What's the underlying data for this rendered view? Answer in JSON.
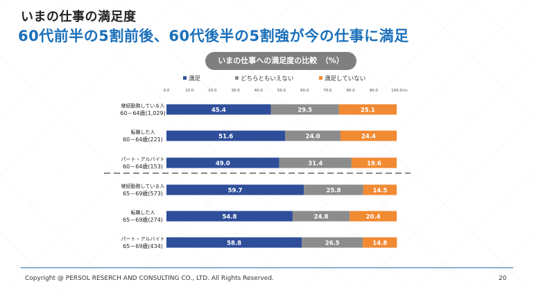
{
  "slide": {
    "title": "いまの仕事の満足度",
    "subtitle": "60代前半の5割前後、60代後半の5割強が今の仕事に満足",
    "pill_label": "いまの仕事への満足度の比較　（%）",
    "copyright": "Copyright @ PERSOL RESERCH AND CONSULTING CO., LTD. All Rights Reserved.",
    "page_number": "20"
  },
  "chart_data": {
    "type": "bar",
    "orientation": "horizontal",
    "stacked": true,
    "unit": "(%)",
    "xlim": [
      0,
      100
    ],
    "ticks": [
      "0.0",
      "10.0",
      "20.0",
      "30.0",
      "40.0",
      "50.0",
      "60.0",
      "70.0",
      "80.0",
      "90.0",
      "100.0"
    ],
    "legend_position": "top",
    "categories": [
      [
        "継続勤務している人",
        "60－64歳(1,029)"
      ],
      [
        "転職した人",
        "60－64歳(221)"
      ],
      [
        "パート・アルバイト",
        "60－64歳(153)"
      ],
      [
        "継続勤務している人",
        "65－69歳(573)"
      ],
      [
        "転職した人",
        "65－69歳(274)"
      ],
      [
        "パート・アルバイト",
        "65－69歳(434)"
      ]
    ],
    "series": [
      {
        "name": "満足",
        "color": "#2f4e9a",
        "values": [
          45.4,
          51.6,
          49.0,
          59.7,
          54.8,
          58.8
        ]
      },
      {
        "name": "どちらともいえない",
        "color": "#8c8c8c",
        "values": [
          29.5,
          24.0,
          31.4,
          25.8,
          24.8,
          26.5
        ]
      },
      {
        "name": "満足していない",
        "color": "#f08a33",
        "values": [
          25.1,
          24.4,
          19.6,
          14.5,
          20.4,
          14.8
        ]
      }
    ]
  }
}
